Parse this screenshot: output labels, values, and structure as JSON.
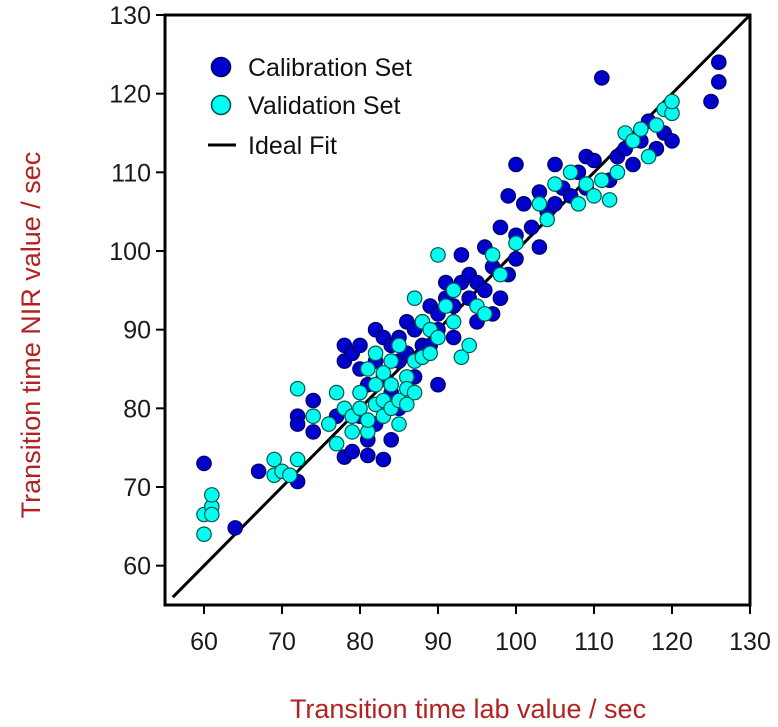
{
  "chart_data": {
    "type": "scatter",
    "xlabel": "Transition time lab value / sec",
    "ylabel": "Transition time NIR value / sec",
    "xlim": [
      55,
      130
    ],
    "ylim": [
      55,
      130
    ],
    "x_ticks": [
      "60",
      "70",
      "80",
      "90",
      "100",
      "110",
      "120",
      "130"
    ],
    "y_ticks": [
      "60",
      "70",
      "80",
      "90",
      "100",
      "110",
      "120",
      "130"
    ],
    "grid": false,
    "legend_position": "top-left",
    "series": [
      {
        "name": "Calibration Set",
        "color": "#0000cc",
        "marker": "circle",
        "points": [
          [
            60,
            73
          ],
          [
            64,
            64.8
          ],
          [
            67,
            72
          ],
          [
            72,
            70.7
          ],
          [
            72,
            79
          ],
          [
            72,
            78
          ],
          [
            74,
            77
          ],
          [
            74,
            81
          ],
          [
            77,
            79
          ],
          [
            78,
            73.8
          ],
          [
            78,
            86
          ],
          [
            78,
            88
          ],
          [
            79,
            87
          ],
          [
            79,
            74.5
          ],
          [
            80,
            79
          ],
          [
            80,
            85
          ],
          [
            80,
            88
          ],
          [
            81,
            83
          ],
          [
            81,
            74
          ],
          [
            81,
            76
          ],
          [
            82,
            90
          ],
          [
            82,
            86
          ],
          [
            82,
            78
          ],
          [
            83,
            73.5
          ],
          [
            83,
            84
          ],
          [
            83,
            89
          ],
          [
            84,
            88
          ],
          [
            84,
            82
          ],
          [
            84,
            76
          ],
          [
            85,
            89
          ],
          [
            85,
            86
          ],
          [
            85,
            80
          ],
          [
            86,
            91
          ],
          [
            86,
            87
          ],
          [
            87,
            90
          ],
          [
            87,
            84
          ],
          [
            88,
            91
          ],
          [
            88,
            88
          ],
          [
            89,
            93
          ],
          [
            89,
            88
          ],
          [
            90,
            92
          ],
          [
            90,
            90
          ],
          [
            90,
            83
          ],
          [
            91,
            96
          ],
          [
            91,
            94
          ],
          [
            92,
            93
          ],
          [
            92,
            89
          ],
          [
            93,
            99.5
          ],
          [
            93,
            96
          ],
          [
            94,
            97
          ],
          [
            94,
            94
          ],
          [
            95,
            96
          ],
          [
            95,
            91
          ],
          [
            96,
            100.5
          ],
          [
            96,
            95
          ],
          [
            97,
            92
          ],
          [
            97,
            98
          ],
          [
            98,
            94
          ],
          [
            98,
            103
          ],
          [
            99,
            97
          ],
          [
            99,
            107
          ],
          [
            100,
            111
          ],
          [
            100,
            102
          ],
          [
            100,
            99
          ],
          [
            101,
            106
          ],
          [
            102,
            103
          ],
          [
            103,
            100.5
          ],
          [
            103,
            107.5
          ],
          [
            104,
            105
          ],
          [
            105,
            106
          ],
          [
            105,
            111
          ],
          [
            106,
            108
          ],
          [
            107,
            107
          ],
          [
            108,
            110
          ],
          [
            109,
            112
          ],
          [
            109,
            108
          ],
          [
            110,
            111.5
          ],
          [
            111,
            122
          ],
          [
            112,
            109
          ],
          [
            113,
            112
          ],
          [
            114,
            113
          ],
          [
            115,
            111
          ],
          [
            116,
            114
          ],
          [
            117,
            116.5
          ],
          [
            118,
            113
          ],
          [
            119,
            115
          ],
          [
            120,
            114
          ],
          [
            125,
            119
          ],
          [
            126,
            121.5
          ],
          [
            126,
            124
          ]
        ]
      },
      {
        "name": "Validation Set",
        "color": "#00ffee",
        "marker": "circle",
        "points": [
          [
            60,
            64
          ],
          [
            60,
            66.5
          ],
          [
            61,
            67.5
          ],
          [
            61,
            69
          ],
          [
            61,
            66.5
          ],
          [
            69,
            73.5
          ],
          [
            69,
            71.5
          ],
          [
            70,
            72
          ],
          [
            71,
            71.5
          ],
          [
            72,
            82.5
          ],
          [
            72,
            73.5
          ],
          [
            74,
            79
          ],
          [
            76,
            78
          ],
          [
            77,
            75.5
          ],
          [
            77,
            82
          ],
          [
            78,
            80
          ],
          [
            79,
            77
          ],
          [
            79,
            79
          ],
          [
            80,
            82
          ],
          [
            80,
            80
          ],
          [
            81,
            85
          ],
          [
            81,
            77
          ],
          [
            81,
            78.5
          ],
          [
            82,
            80.5
          ],
          [
            82,
            83
          ],
          [
            82,
            87
          ],
          [
            83,
            81
          ],
          [
            83,
            84.5
          ],
          [
            83,
            79
          ],
          [
            84,
            80
          ],
          [
            84,
            83
          ],
          [
            84,
            86
          ],
          [
            85,
            88
          ],
          [
            85,
            81
          ],
          [
            85,
            78
          ],
          [
            86,
            84
          ],
          [
            86,
            82.5
          ],
          [
            86,
            80.5
          ],
          [
            87,
            94
          ],
          [
            87,
            86
          ],
          [
            87,
            82
          ],
          [
            88,
            86.5
          ],
          [
            88,
            91
          ],
          [
            89,
            90
          ],
          [
            89,
            87
          ],
          [
            90,
            99.5
          ],
          [
            90,
            89
          ],
          [
            91,
            93
          ],
          [
            92,
            95
          ],
          [
            92,
            91
          ],
          [
            93,
            86.5
          ],
          [
            94,
            88
          ],
          [
            95,
            93
          ],
          [
            96,
            92
          ],
          [
            97,
            99.5
          ],
          [
            98,
            97
          ],
          [
            100,
            101
          ],
          [
            103,
            106
          ],
          [
            104,
            104
          ],
          [
            105,
            108.5
          ],
          [
            107,
            110
          ],
          [
            108,
            106
          ],
          [
            109,
            108.5
          ],
          [
            110,
            107
          ],
          [
            111,
            109
          ],
          [
            112,
            106.5
          ],
          [
            113,
            110
          ],
          [
            114,
            115
          ],
          [
            115,
            114
          ],
          [
            116,
            115.5
          ],
          [
            117,
            112
          ],
          [
            118,
            116
          ],
          [
            119,
            118
          ],
          [
            120,
            117.5
          ],
          [
            120,
            119
          ]
        ]
      },
      {
        "name": "Ideal Fit",
        "color": "#000000",
        "marker": "line",
        "points": [
          [
            56,
            56
          ],
          [
            130,
            130
          ]
        ]
      }
    ]
  }
}
